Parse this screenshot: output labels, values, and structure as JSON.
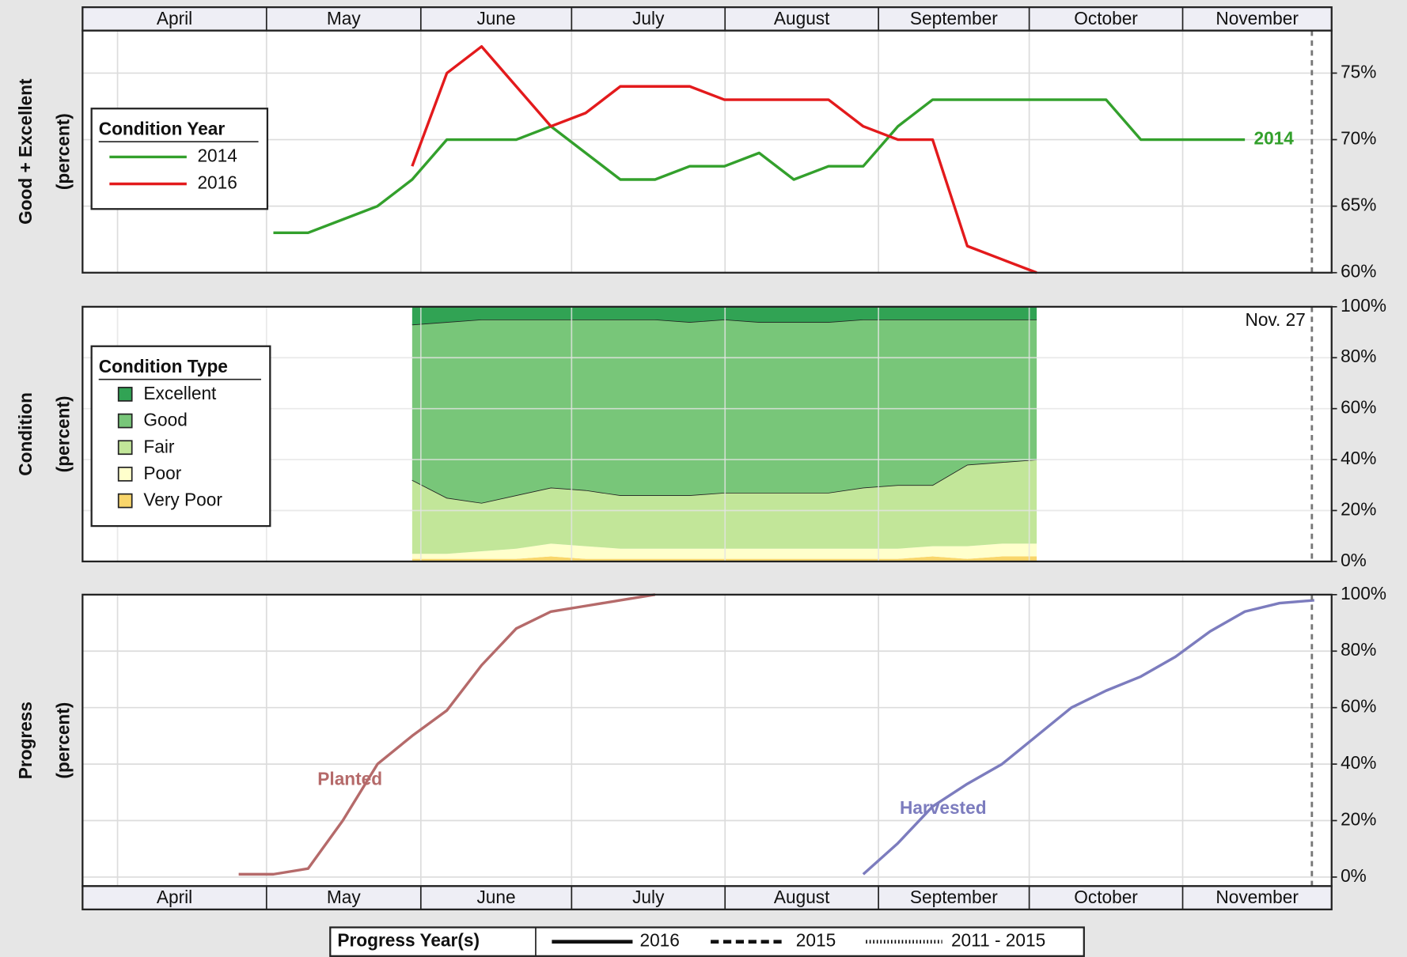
{
  "chart_data": [
    {
      "type": "line",
      "title": "Good + Excellent",
      "y_unit": "(percent)",
      "months": [
        "April",
        "May",
        "June",
        "July",
        "August",
        "September",
        "October",
        "November"
      ],
      "categories": [
        null,
        null,
        null,
        null,
        null,
        null,
        null,
        null,
        null,
        null,
        null,
        null,
        null,
        null,
        null,
        null,
        null,
        null,
        null,
        null,
        null,
        null,
        null,
        null,
        null,
        null,
        null,
        null,
        null,
        null,
        null,
        null,
        null,
        null,
        null,
        null
      ],
      "legend_title": "Condition Year",
      "series": [
        {
          "name": "2014",
          "color": "#33a02c",
          "direct_label": true,
          "values": [
            null,
            null,
            null,
            null,
            null,
            63,
            63,
            64,
            65,
            67,
            70,
            70,
            70,
            71,
            69,
            67,
            67,
            68,
            68,
            69,
            67,
            68,
            68,
            71,
            73,
            73,
            73,
            73,
            73,
            73,
            70,
            70,
            70,
            70,
            null,
            null
          ]
        },
        {
          "name": "2016",
          "color": "#e31a1c",
          "values": [
            null,
            null,
            null,
            null,
            null,
            null,
            null,
            null,
            null,
            68,
            75,
            77,
            74,
            71,
            72,
            74,
            74,
            74,
            73,
            73,
            73,
            73,
            71,
            70,
            70,
            62,
            61,
            60,
            null,
            null,
            null,
            null,
            null,
            null,
            null,
            null
          ]
        }
      ],
      "ylim": [
        60,
        78.2
      ],
      "yticks": [
        {
          "value": 60,
          "label": "60%"
        },
        {
          "value": 65,
          "label": "65%"
        },
        {
          "value": 70,
          "label": "70%"
        },
        {
          "value": 75,
          "label": "75%"
        }
      ],
      "grid": true
    },
    {
      "type": "area",
      "title": "Condition",
      "y_unit": "(percent)",
      "categories": [
        null,
        null,
        null,
        null,
        null,
        null,
        null,
        null,
        null,
        null,
        null,
        null,
        null,
        null,
        null,
        null,
        null,
        null,
        null,
        null,
        null,
        null,
        null,
        null,
        null,
        null,
        null,
        null,
        null,
        null,
        null,
        null,
        null,
        null,
        null,
        null
      ],
      "legend_title": "Condition Type",
      "annotation": "Nov. 27",
      "series": [
        {
          "name": "Excellent",
          "color": "#31a354",
          "values": [
            null,
            null,
            null,
            null,
            null,
            null,
            null,
            null,
            null,
            7,
            6,
            5,
            5,
            5,
            5,
            5,
            5,
            6,
            5,
            6,
            6,
            6,
            5,
            5,
            5,
            5,
            5,
            5,
            null,
            null,
            null,
            null,
            null,
            null,
            null,
            null
          ]
        },
        {
          "name": "Good",
          "color": "#78c679",
          "outline": true,
          "values": [
            null,
            null,
            null,
            null,
            null,
            null,
            null,
            null,
            null,
            61,
            69,
            72,
            69,
            66,
            67,
            69,
            69,
            68,
            68,
            67,
            67,
            67,
            66,
            65,
            65,
            57,
            56,
            55,
            null,
            null,
            null,
            null,
            null,
            null,
            null,
            null
          ]
        },
        {
          "name": "Fair",
          "color": "#c2e699",
          "outline": true,
          "values": [
            null,
            null,
            null,
            null,
            null,
            null,
            null,
            null,
            null,
            29,
            22,
            19,
            21,
            22,
            22,
            21,
            21,
            21,
            22,
            22,
            22,
            22,
            24,
            25,
            24,
            32,
            32,
            33,
            null,
            null,
            null,
            null,
            null,
            null,
            null,
            null
          ]
        },
        {
          "name": "Poor",
          "color": "#ffffcc",
          "values": [
            null,
            null,
            null,
            null,
            null,
            null,
            null,
            null,
            null,
            2,
            2,
            3,
            4,
            5,
            5,
            4,
            4,
            4,
            4,
            4,
            4,
            4,
            4,
            4,
            4,
            5,
            5,
            5,
            null,
            null,
            null,
            null,
            null,
            null,
            null,
            null
          ]
        },
        {
          "name": "Very Poor",
          "color": "#f9d66b",
          "values": [
            null,
            null,
            null,
            null,
            null,
            null,
            null,
            null,
            null,
            1,
            1,
            1,
            1,
            2,
            1,
            1,
            1,
            1,
            1,
            1,
            1,
            1,
            1,
            1,
            2,
            1,
            2,
            2,
            null,
            null,
            null,
            null,
            null,
            null,
            null,
            null
          ]
        }
      ],
      "ylim": [
        0,
        100
      ],
      "yticks": [
        {
          "value": 0,
          "label": "0%"
        },
        {
          "value": 20,
          "label": "20%"
        },
        {
          "value": 40,
          "label": "40%"
        },
        {
          "value": 60,
          "label": "60%"
        },
        {
          "value": 80,
          "label": "80%"
        },
        {
          "value": 100,
          "label": "100%"
        }
      ],
      "grid": true
    },
    {
      "type": "line",
      "title": "Progress",
      "y_unit": "(percent)",
      "months": [
        "April",
        "May",
        "June",
        "July",
        "August",
        "September",
        "October",
        "November"
      ],
      "categories": [
        null,
        null,
        null,
        null,
        null,
        null,
        null,
        null,
        null,
        null,
        null,
        null,
        null,
        null,
        null,
        null,
        null,
        null,
        null,
        null,
        null,
        null,
        null,
        null,
        null,
        null,
        null,
        null,
        null,
        null,
        null,
        null,
        null,
        null,
        null,
        null
      ],
      "series": [
        {
          "name": "Planted",
          "color": "#b56a6a",
          "direct_label": true,
          "values": [
            null,
            null,
            null,
            null,
            1,
            1,
            3,
            20,
            40,
            50,
            59,
            75,
            88,
            94,
            96,
            98,
            100,
            null,
            null,
            null,
            null,
            null,
            null,
            null,
            null,
            null,
            null,
            null,
            null,
            null,
            null,
            null,
            null,
            null,
            null,
            null
          ]
        },
        {
          "name": "Harvested",
          "color": "#7c7cbe",
          "direct_label": true,
          "values": [
            null,
            null,
            null,
            null,
            null,
            null,
            null,
            null,
            null,
            null,
            null,
            null,
            null,
            null,
            null,
            null,
            null,
            null,
            null,
            null,
            null,
            null,
            1,
            12,
            25,
            33,
            40,
            50,
            60,
            66,
            71,
            78,
            87,
            94,
            97,
            98
          ]
        }
      ],
      "ylim": [
        -3.2,
        100
      ],
      "yticks": [
        {
          "value": 0,
          "label": "0%"
        },
        {
          "value": 20,
          "label": "20%"
        },
        {
          "value": 40,
          "label": "40%"
        },
        {
          "value": 60,
          "label": "60%"
        },
        {
          "value": 80,
          "label": "80%"
        },
        {
          "value": 100,
          "label": "100%"
        }
      ],
      "grid": true,
      "progress_legend": {
        "title": "Progress Year(s)",
        "items": [
          {
            "label": "2016",
            "style": "solid"
          },
          {
            "label": "2015",
            "style": "dashed"
          },
          {
            "label": "2011 - 2015",
            "style": "dotted"
          }
        ]
      }
    }
  ]
}
